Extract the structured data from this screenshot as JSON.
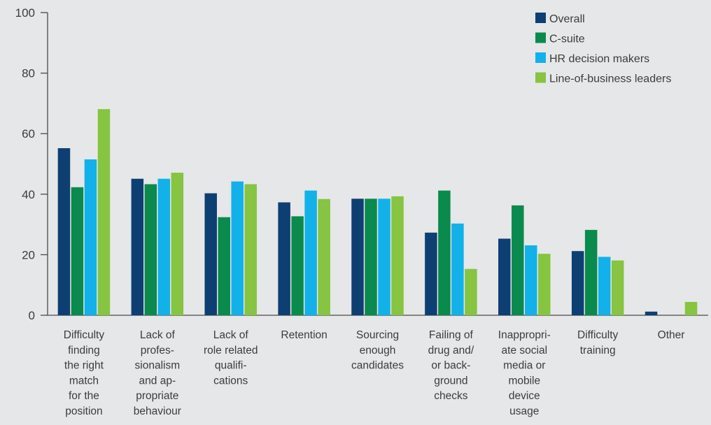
{
  "chart_data": {
    "type": "bar",
    "title": "",
    "xlabel": "",
    "ylabel": "",
    "ylim": [
      0,
      100
    ],
    "yticks": [
      "0",
      "20",
      "40",
      "60",
      "80",
      "100"
    ],
    "grid": false,
    "legend_position": "top-right",
    "categories": [
      [
        "Difficulty",
        "finding",
        "the right",
        "match",
        "for the",
        "position"
      ],
      [
        "Lack of",
        "profes-",
        "sionalism",
        "and ap-",
        "propriate",
        "behaviour"
      ],
      [
        "Lack of",
        "role related",
        "qualifi-",
        "cations"
      ],
      [
        "Retention"
      ],
      [
        "Sourcing",
        "enough",
        "candidates"
      ],
      [
        "Failing of",
        "drug and/",
        "or back-",
        "ground",
        "checks"
      ],
      [
        "Inappropri-",
        "ate social",
        "media or",
        "mobile",
        "device",
        "usage"
      ],
      [
        "Difficulty",
        "training"
      ],
      [
        "Other"
      ]
    ],
    "series": [
      {
        "name": "Overall",
        "color": "#0e3f72",
        "values": [
          55.2,
          45.1,
          40.3,
          37.3,
          38.5,
          27.3,
          25.3,
          21.2,
          1.2
        ]
      },
      {
        "name": "C-suite",
        "color": "#0a8a4d",
        "values": [
          42.3,
          43.3,
          32.4,
          32.7,
          38.5,
          41.2,
          36.3,
          28.2,
          0
        ]
      },
      {
        "name": "HR decision makers",
        "color": "#12b1ea",
        "values": [
          51.5,
          45.1,
          44.2,
          41.2,
          38.5,
          30.3,
          23.1,
          19.3,
          0
        ]
      },
      {
        "name": "Line-of-business leaders",
        "color": "#86c441",
        "values": [
          68.1,
          47.1,
          43.3,
          38.4,
          39.3,
          15.3,
          20.3,
          18.1,
          4.4
        ]
      }
    ]
  }
}
